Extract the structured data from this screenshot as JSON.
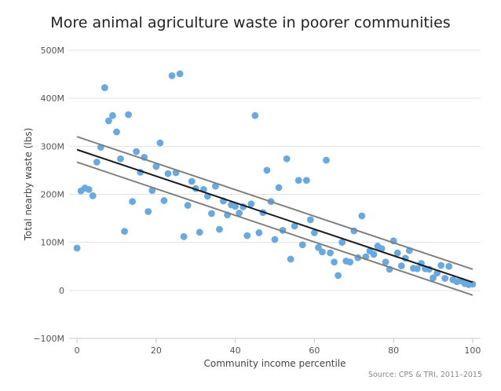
{
  "chart_data": {
    "type": "scatter",
    "title": "More animal agriculture waste in poorer communities",
    "xlabel": "Community income percentile",
    "ylabel": "Total nearby waste (lbs)",
    "source": "Source: CPS & TRI, 2011–2015",
    "xlim": [
      -2,
      102
    ],
    "ylim": [
      -100,
      500
    ],
    "x_ticks": [
      0,
      20,
      40,
      60,
      80,
      100
    ],
    "y_ticks": [
      -100,
      0,
      100,
      200,
      300,
      400,
      500
    ],
    "y_tick_labels": [
      "−100M",
      "0",
      "100M",
      "200M",
      "300M",
      "400M",
      "500M"
    ],
    "grid": "horizontal",
    "colors": {
      "points": "#6aa9e0",
      "fit": "#1a1a1a",
      "band": "#808080",
      "grid": "#e3e3e3"
    },
    "points": [
      [
        0,
        88
      ],
      [
        1,
        207
      ],
      [
        2,
        213
      ],
      [
        3,
        210
      ],
      [
        4,
        197
      ],
      [
        5,
        267
      ],
      [
        6,
        298
      ],
      [
        7,
        422
      ],
      [
        8,
        353
      ],
      [
        9,
        364
      ],
      [
        10,
        330
      ],
      [
        11,
        274
      ],
      [
        12,
        123
      ],
      [
        13,
        366
      ],
      [
        14,
        185
      ],
      [
        15,
        289
      ],
      [
        16,
        246
      ],
      [
        17,
        277
      ],
      [
        18,
        164
      ],
      [
        19,
        208
      ],
      [
        20,
        258
      ],
      [
        21,
        307
      ],
      [
        22,
        187
      ],
      [
        23,
        243
      ],
      [
        24,
        447
      ],
      [
        25,
        245
      ],
      [
        26,
        451
      ],
      [
        27,
        112
      ],
      [
        28,
        177
      ],
      [
        29,
        227
      ],
      [
        30,
        212
      ],
      [
        31,
        121
      ],
      [
        32,
        210
      ],
      [
        33,
        196
      ],
      [
        34,
        160
      ],
      [
        35,
        217
      ],
      [
        36,
        127
      ],
      [
        37,
        186
      ],
      [
        38,
        157
      ],
      [
        39,
        178
      ],
      [
        40,
        175
      ],
      [
        41,
        161
      ],
      [
        42,
        174
      ],
      [
        43,
        114
      ],
      [
        44,
        180
      ],
      [
        45,
        364
      ],
      [
        46,
        120
      ],
      [
        47,
        162
      ],
      [
        48,
        250
      ],
      [
        49,
        185
      ],
      [
        50,
        106
      ],
      [
        51,
        214
      ],
      [
        52,
        125
      ],
      [
        53,
        274
      ],
      [
        54,
        65
      ],
      [
        55,
        134
      ],
      [
        56,
        229
      ],
      [
        57,
        95
      ],
      [
        58,
        229
      ],
      [
        59,
        147
      ],
      [
        60,
        120
      ],
      [
        61,
        89
      ],
      [
        62,
        80
      ],
      [
        63,
        271
      ],
      [
        64,
        78
      ],
      [
        65,
        59
      ],
      [
        66,
        31
      ],
      [
        67,
        100
      ],
      [
        68,
        61
      ],
      [
        69,
        59
      ],
      [
        70,
        124
      ],
      [
        71,
        68
      ],
      [
        72,
        155
      ],
      [
        73,
        70
      ],
      [
        74,
        82
      ],
      [
        75,
        75
      ],
      [
        76,
        92
      ],
      [
        77,
        87
      ],
      [
        78,
        59
      ],
      [
        79,
        44
      ],
      [
        80,
        103
      ],
      [
        81,
        78
      ],
      [
        82,
        51
      ],
      [
        83,
        67
      ],
      [
        84,
        83
      ],
      [
        85,
        46
      ],
      [
        86,
        45
      ],
      [
        87,
        56
      ],
      [
        88,
        45
      ],
      [
        89,
        44
      ],
      [
        90,
        26
      ],
      [
        91,
        36
      ],
      [
        92,
        52
      ],
      [
        93,
        25
      ],
      [
        94,
        50
      ],
      [
        95,
        22
      ],
      [
        96,
        18
      ],
      [
        97,
        20
      ],
      [
        98,
        14
      ],
      [
        99,
        12
      ],
      [
        100,
        13
      ]
    ],
    "fit_line": {
      "x": [
        0,
        100
      ],
      "y": [
        293,
        17
      ]
    },
    "band_upper": {
      "x": [
        0,
        100
      ],
      "y": [
        320,
        44
      ]
    },
    "band_lower": {
      "x": [
        0,
        100
      ],
      "y": [
        267,
        -10
      ]
    }
  }
}
